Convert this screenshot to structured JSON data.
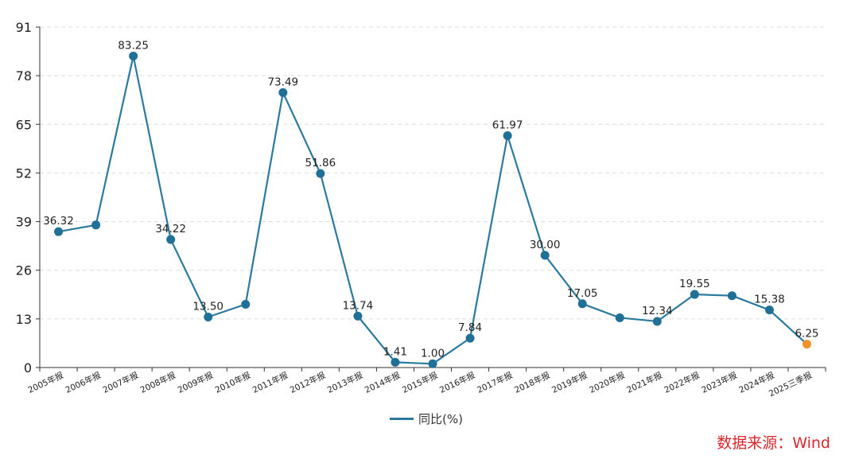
{
  "colors": {
    "line": "#2b7a9e",
    "marker": "#1f6f96",
    "highlight_marker": "#f0932b",
    "grid": "#dddddd",
    "axis": "#333333",
    "text": "#222222",
    "source": "#d9272d"
  },
  "chart_data": {
    "type": "line",
    "categories": [
      "2005年报",
      "2006年报",
      "2007年报",
      "2008年报",
      "2009年报",
      "2010年报",
      "2011年报",
      "2012年报",
      "2013年报",
      "2014年报",
      "2015年报",
      "2016年报",
      "2017年报",
      "2018年报",
      "2019年报",
      "2020年报",
      "2021年报",
      "2022年报",
      "2023年报",
      "2024年报",
      "2025三季报"
    ],
    "series": [
      {
        "name": "同比(%)",
        "values": [
          36.32,
          38.1,
          83.25,
          34.22,
          13.5,
          16.9,
          73.49,
          51.86,
          13.74,
          1.41,
          1.0,
          7.84,
          61.97,
          30.0,
          17.05,
          13.3,
          12.34,
          19.55,
          19.2,
          15.38,
          6.25
        ],
        "data_labels": [
          "36.32",
          "",
          "83.25",
          "34.22",
          "13.50",
          "",
          "73.49",
          "51.86",
          "13.74",
          "1.41",
          "1.00",
          "7.84",
          "61.97",
          "30.00",
          "17.05",
          "",
          "12.34",
          "19.55",
          "",
          "15.38",
          "6.25"
        ]
      }
    ],
    "highlight_last_point": true,
    "yticks": [
      0,
      13,
      26,
      39,
      52,
      65,
      78,
      91
    ],
    "ylim": [
      0,
      91
    ],
    "grid": "horizontal dashed",
    "legend": "bottom-center"
  },
  "legend": {
    "label": "同比(%)"
  },
  "source": "数据来源：Wind"
}
